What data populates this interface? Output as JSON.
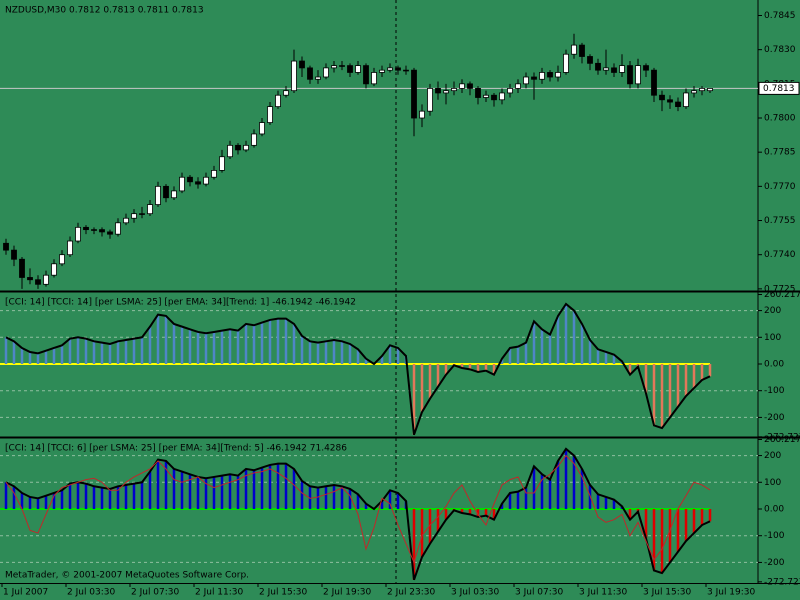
{
  "chart_data": [
    {
      "type": "candlestick",
      "title": "NZDUSD,M30  0.7812 0.7813 0.7811 0.7813",
      "categories": [
        "1 Jul 2007",
        null,
        null,
        null,
        null,
        null,
        null,
        null,
        "2 Jul 03:30",
        null,
        null,
        null,
        null,
        null,
        null,
        null,
        "2 Jul 07:30",
        null,
        null,
        null,
        null,
        null,
        null,
        null,
        "2 Jul 11:30",
        null,
        null,
        null,
        null,
        null,
        null,
        null,
        "2 Jul 15:30",
        null,
        null,
        null,
        null,
        null,
        null,
        null,
        "2 Jul 19:30",
        null,
        null,
        null,
        null,
        null,
        null,
        null,
        "2 Jul 23:30",
        null,
        null,
        null,
        null,
        null,
        null,
        null,
        "3 Jul 03:30",
        null,
        null,
        null,
        null,
        null,
        null,
        null,
        "3 Jul 07:30",
        null,
        null,
        null,
        null,
        null,
        null,
        null,
        "3 Jul 11:30",
        null,
        null,
        null,
        null,
        null,
        null,
        null,
        "3 Jul 15:30",
        null,
        null,
        null,
        null,
        null,
        null,
        null,
        "3 Jul 19:30"
      ],
      "ohlc": [
        [
          0.7745,
          0.7747,
          0.774,
          0.7742
        ],
        [
          0.7742,
          0.7744,
          0.7735,
          0.7738
        ],
        [
          0.7738,
          0.7739,
          0.7725,
          0.773
        ],
        [
          0.773,
          0.7734,
          0.7727,
          0.7729
        ],
        [
          0.7729,
          0.7731,
          0.7725,
          0.7727
        ],
        [
          0.7727,
          0.7733,
          0.7726,
          0.7731
        ],
        [
          0.7731,
          0.7738,
          0.773,
          0.7736
        ],
        [
          0.7736,
          0.7742,
          0.7735,
          0.774
        ],
        [
          0.774,
          0.7748,
          0.7739,
          0.7746
        ],
        [
          0.7746,
          0.7754,
          0.7745,
          0.7752
        ],
        [
          0.7752,
          0.7753,
          0.7749,
          0.7751
        ],
        [
          0.7751,
          0.7752,
          0.7749,
          0.7751
        ],
        [
          0.7751,
          0.7752,
          0.7748,
          0.775
        ],
        [
          0.775,
          0.7751,
          0.7747,
          0.7749
        ],
        [
          0.7749,
          0.7756,
          0.7748,
          0.7754
        ],
        [
          0.7754,
          0.7758,
          0.7753,
          0.7756
        ],
        [
          0.7756,
          0.776,
          0.7754,
          0.7758
        ],
        [
          0.7758,
          0.7761,
          0.7756,
          0.7758
        ],
        [
          0.7758,
          0.7764,
          0.7757,
          0.7762
        ],
        [
          0.7762,
          0.7772,
          0.7761,
          0.777
        ],
        [
          0.777,
          0.7771,
          0.7763,
          0.7765
        ],
        [
          0.7765,
          0.777,
          0.7764,
          0.7768
        ],
        [
          0.7768,
          0.7776,
          0.7767,
          0.7774
        ],
        [
          0.7774,
          0.7775,
          0.777,
          0.7772
        ],
        [
          0.7772,
          0.7774,
          0.7769,
          0.7771
        ],
        [
          0.7771,
          0.7776,
          0.777,
          0.7774
        ],
        [
          0.7774,
          0.7779,
          0.7773,
          0.7777
        ],
        [
          0.7777,
          0.7786,
          0.7776,
          0.7783
        ],
        [
          0.7783,
          0.779,
          0.7782,
          0.7788
        ],
        [
          0.7788,
          0.7789,
          0.7784,
          0.7786
        ],
        [
          0.7786,
          0.779,
          0.7785,
          0.7788
        ],
        [
          0.7788,
          0.7795,
          0.7787,
          0.7793
        ],
        [
          0.7793,
          0.78,
          0.7792,
          0.7798
        ],
        [
          0.7798,
          0.7807,
          0.7797,
          0.7805
        ],
        [
          0.7805,
          0.7812,
          0.7804,
          0.781
        ],
        [
          0.781,
          0.7814,
          0.7809,
          0.7812
        ],
        [
          0.7812,
          0.783,
          0.7811,
          0.7825
        ],
        [
          0.7825,
          0.7827,
          0.7818,
          0.7822
        ],
        [
          0.7822,
          0.7823,
          0.7815,
          0.7817
        ],
        [
          0.7817,
          0.7821,
          0.7815,
          0.7818
        ],
        [
          0.7818,
          0.7824,
          0.7817,
          0.7822
        ],
        [
          0.7822,
          0.7825,
          0.782,
          0.7823
        ],
        [
          0.7823,
          0.7825,
          0.7821,
          0.7823
        ],
        [
          0.7823,
          0.7824,
          0.7818,
          0.782
        ],
        [
          0.782,
          0.7825,
          0.7819,
          0.7823
        ],
        [
          0.7823,
          0.7824,
          0.7813,
          0.7815
        ],
        [
          0.7815,
          0.7822,
          0.7814,
          0.782
        ],
        [
          0.782,
          0.7823,
          0.7818,
          0.7821
        ],
        [
          0.7821,
          0.7824,
          0.782,
          0.7822
        ],
        [
          0.7822,
          0.7823,
          0.7819,
          0.7821
        ],
        [
          0.7821,
          0.7823,
          0.7819,
          0.7821
        ],
        [
          0.7821,
          0.7822,
          0.7792,
          0.78
        ],
        [
          0.78,
          0.7806,
          0.7796,
          0.7803
        ],
        [
          0.7803,
          0.7815,
          0.7801,
          0.7813
        ],
        [
          0.7813,
          0.7816,
          0.7808,
          0.7811
        ],
        [
          0.7811,
          0.7815,
          0.7806,
          0.7812
        ],
        [
          0.7812,
          0.7816,
          0.781,
          0.7813
        ],
        [
          0.7813,
          0.7817,
          0.7811,
          0.7815
        ],
        [
          0.7815,
          0.7816,
          0.781,
          0.7813
        ],
        [
          0.7813,
          0.7814,
          0.7806,
          0.7809
        ],
        [
          0.7809,
          0.7812,
          0.7807,
          0.781
        ],
        [
          0.781,
          0.7811,
          0.7805,
          0.7808
        ],
        [
          0.7808,
          0.7813,
          0.7806,
          0.7811
        ],
        [
          0.7811,
          0.7815,
          0.7809,
          0.7813
        ],
        [
          0.7813,
          0.7817,
          0.7811,
          0.7815
        ],
        [
          0.7815,
          0.782,
          0.7813,
          0.7818
        ],
        [
          0.7818,
          0.782,
          0.7808,
          0.7817
        ],
        [
          0.7817,
          0.7822,
          0.7815,
          0.782
        ],
        [
          0.782,
          0.7821,
          0.7816,
          0.7818
        ],
        [
          0.7818,
          0.7823,
          0.7816,
          0.782
        ],
        [
          0.782,
          0.783,
          0.7819,
          0.7828
        ],
        [
          0.7828,
          0.7837,
          0.7826,
          0.7832
        ],
        [
          0.7832,
          0.7833,
          0.7824,
          0.7827
        ],
        [
          0.7827,
          0.7828,
          0.7821,
          0.7824
        ],
        [
          0.7824,
          0.7826,
          0.7819,
          0.7821
        ],
        [
          0.7821,
          0.783,
          0.7819,
          0.7822
        ],
        [
          0.7822,
          0.7824,
          0.7818,
          0.782
        ],
        [
          0.782,
          0.7828,
          0.7818,
          0.7823
        ],
        [
          0.7823,
          0.7825,
          0.7813,
          0.7815
        ],
        [
          0.7815,
          0.7826,
          0.7813,
          0.7823
        ],
        [
          0.7823,
          0.7824,
          0.7818,
          0.7821
        ],
        [
          0.7821,
          0.7822,
          0.7807,
          0.781
        ],
        [
          0.781,
          0.7812,
          0.7803,
          0.7808
        ],
        [
          0.7808,
          0.781,
          0.7804,
          0.7807
        ],
        [
          0.7807,
          0.7809,
          0.7803,
          0.7805
        ],
        [
          0.7805,
          0.7813,
          0.7804,
          0.7811
        ],
        [
          0.7811,
          0.7814,
          0.7809,
          0.7812
        ],
        [
          0.7812,
          0.7814,
          0.781,
          0.7813
        ],
        [
          0.7812,
          0.7813,
          0.7811,
          0.7813
        ]
      ],
      "up_color": "#ffffff",
      "down_color": "#000000",
      "ylim": [
        0.77245,
        0.78518
      ],
      "yticks": [
        0.7845,
        {
          "value": 0.783,
          "label": "0.7830"
        },
        0.7815,
        {
          "value": 0.78,
          "label": "0.7800"
        },
        0.7785,
        {
          "value": 0.777,
          "label": "0.7770"
        },
        0.7755,
        {
          "value": 0.774,
          "label": "0.7740"
        },
        0.7725
      ],
      "current_price": 0.7813
    },
    {
      "type": "indicator",
      "title": "[CCI: 14] [TCCI: 14] [per LSMA: 25] [per EMA: 34][Trend: 1]  -46.1942 -46.1942",
      "values": [
        100,
        85,
        60,
        45,
        40,
        50,
        60,
        70,
        95,
        100,
        95,
        85,
        80,
        75,
        85,
        90,
        95,
        100,
        140,
        185,
        180,
        150,
        140,
        130,
        120,
        115,
        120,
        125,
        130,
        125,
        150,
        145,
        155,
        165,
        170,
        170,
        150,
        105,
        85,
        80,
        85,
        90,
        85,
        75,
        55,
        20,
        0,
        30,
        70,
        60,
        30,
        -265,
        -180,
        -130,
        -85,
        -40,
        -5,
        -15,
        -20,
        -30,
        -25,
        -40,
        20,
        60,
        65,
        80,
        160,
        130,
        110,
        180,
        225,
        200,
        150,
        90,
        55,
        45,
        35,
        10,
        -40,
        -10,
        -110,
        -230,
        -240,
        -200,
        -160,
        -120,
        -90,
        -60,
        -46.1942
      ],
      "positive_color": "#4f86c6",
      "negative_color": "#e2785a",
      "zero_color": "#ffff00",
      "ylim": [
        -273.4,
        265.9
      ],
      "yticks": [
        260.2171,
        200,
        100,
        {
          "value": 0,
          "label": "0.00"
        },
        -100,
        -200,
        -272.7271
      ]
    },
    {
      "type": "indicator",
      "title": "[CCI: 14] [TCCI: 6] [per LSMA: 25] [per EMA: 34][Trend: 5]  -46.1942 71.4286",
      "values": [
        100,
        85,
        60,
        45,
        40,
        50,
        60,
        70,
        95,
        100,
        95,
        85,
        80,
        75,
        85,
        90,
        95,
        100,
        140,
        185,
        180,
        150,
        140,
        130,
        120,
        115,
        120,
        125,
        130,
        125,
        150,
        145,
        155,
        165,
        170,
        170,
        150,
        105,
        85,
        80,
        85,
        90,
        85,
        75,
        55,
        20,
        0,
        30,
        70,
        60,
        30,
        -265,
        -180,
        -130,
        -85,
        -40,
        -5,
        -15,
        -20,
        -30,
        -25,
        -40,
        20,
        60,
        65,
        80,
        160,
        130,
        110,
        180,
        225,
        200,
        150,
        90,
        55,
        45,
        35,
        10,
        -40,
        -10,
        -110,
        -230,
        -240,
        -200,
        -160,
        -120,
        -90,
        -60,
        -46.1942
      ],
      "tcci_values": [
        100,
        60,
        0,
        -80,
        -90,
        -20,
        50,
        80,
        90,
        100,
        110,
        115,
        100,
        70,
        70,
        100,
        120,
        135,
        150,
        180,
        150,
        110,
        100,
        110,
        120,
        95,
        80,
        90,
        100,
        110,
        125,
        135,
        140,
        150,
        135,
        115,
        90,
        60,
        40,
        45,
        55,
        65,
        80,
        50,
        -20,
        -150,
        -70,
        40,
        20,
        -60,
        -130,
        -200,
        -100,
        -60,
        -30,
        10,
        60,
        90,
        30,
        -20,
        -60,
        20,
        90,
        110,
        120,
        60,
        60,
        110,
        130,
        160,
        200,
        170,
        120,
        50,
        -30,
        -50,
        -40,
        -20,
        -100,
        -50,
        -120,
        -190,
        -150,
        -80,
        0,
        50,
        100,
        90,
        71.4286
      ],
      "positive_color": "#0000cc",
      "negative_color": "#e00000",
      "zero_color": "#00e000",
      "tcci_color": "#c0282a",
      "ylim": [
        -277,
        262
      ],
      "yticks": [
        260.2171,
        200,
        100,
        {
          "value": 0,
          "label": "0.00"
        },
        -100,
        -200,
        -272.7271
      ]
    }
  ],
  "footer": "MetaTrader, © 2001-2007 MetaQuotes Software Corp."
}
